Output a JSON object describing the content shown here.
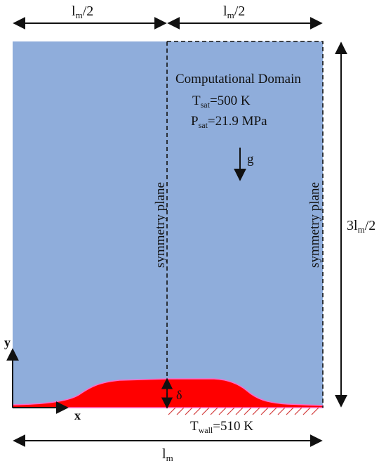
{
  "dimensions": {
    "top_left_label": "l",
    "top_left_sub": "m",
    "top_left_suffix": "/2",
    "top_right_label": "l",
    "top_right_sub": "m",
    "top_right_suffix": "/2",
    "height_prefix": "3l",
    "height_sub": "m",
    "height_suffix": "/2",
    "bottom_label": "l",
    "bottom_sub": "m"
  },
  "domain": {
    "title": "Computational Domain",
    "tsat_prefix": "T",
    "tsat_sub": "sat",
    "tsat_value": "=500 K",
    "psat_prefix": "P",
    "psat_sub": "sat",
    "psat_value": "=21.9 MPa",
    "gravity": "g"
  },
  "planes": {
    "left": "symmetry plane",
    "right": "symmetry plane"
  },
  "film": {
    "delta": "δ"
  },
  "wall": {
    "prefix": "T",
    "sub": "wall",
    "value": "=510 K"
  },
  "axes": {
    "x": "x",
    "y": "y"
  },
  "colors": {
    "domain_fill": "#8faddb",
    "liquid_fill": "#ff0000",
    "interface_edge": "#ff69c8",
    "wall_hatch": "#d23b3b",
    "line": "#111111"
  }
}
